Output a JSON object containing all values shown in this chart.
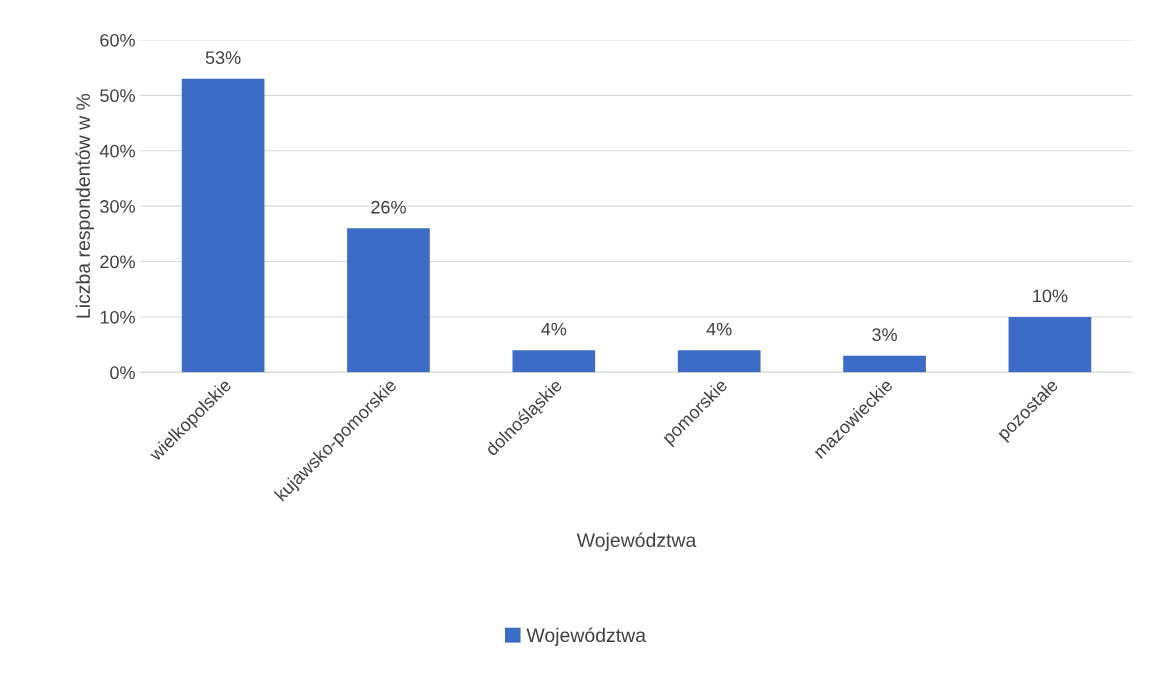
{
  "chart_data": {
    "type": "bar",
    "categories": [
      "wielkopolskie",
      "kujawsko-pomorskie",
      "dolnośląskie",
      "pomorskie",
      "mazowieckie",
      "pozostałe"
    ],
    "series": [
      {
        "name": "Województwa",
        "color": "#3d6cc6",
        "values": [
          53,
          26,
          4,
          4,
          3,
          10
        ],
        "value_labels": [
          "53%",
          "26%",
          "4%",
          "4%",
          "3%",
          "10%"
        ]
      }
    ],
    "xlabel": "Województwa",
    "ylabel": "Liczba respondentów w %",
    "ylim": [
      0,
      60
    ],
    "yticks": [
      {
        "value": 0,
        "label": "0%"
      },
      {
        "value": 10,
        "label": "10%"
      },
      {
        "value": 20,
        "label": "20%"
      },
      {
        "value": 30,
        "label": "30%"
      },
      {
        "value": 40,
        "label": "40%"
      },
      {
        "value": 50,
        "label": "50%"
      },
      {
        "value": 60,
        "label": "60%"
      }
    ],
    "grid": "y",
    "legend": "bottom"
  }
}
